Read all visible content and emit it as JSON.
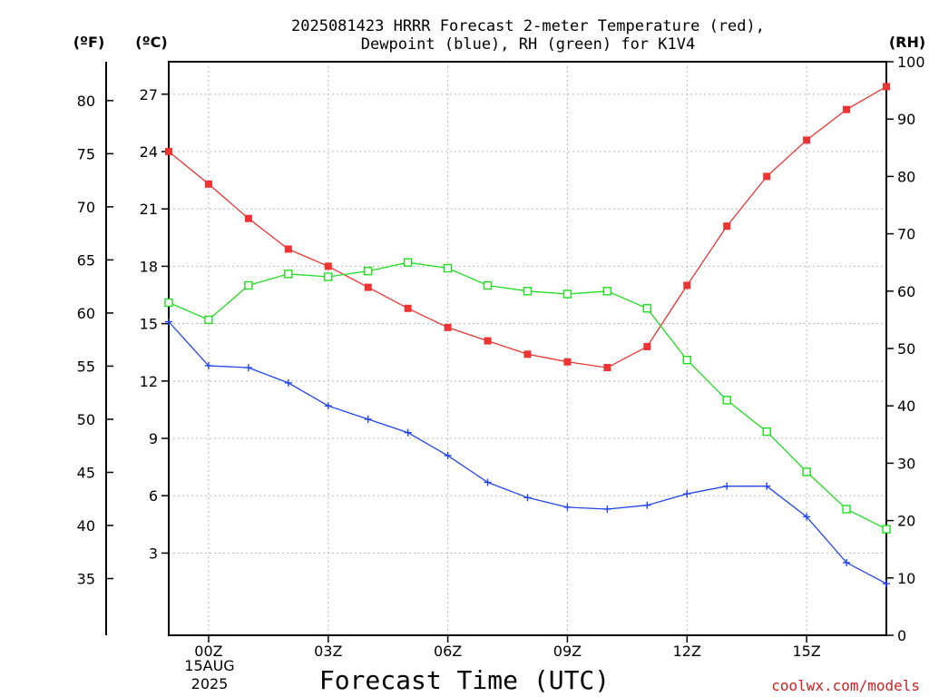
{
  "chart_data": {
    "type": "line",
    "title_lines": [
      "2025081423 HRRR Forecast 2-meter Temperature (red),",
      "Dewpoint (blue), RH (green) for K1V4"
    ],
    "xlabel": "Forecast Time (UTC)",
    "date_label_lines": [
      "15AUG",
      "2025"
    ],
    "credit": "coolwx.com/models",
    "unit_labels": {
      "fahrenheit": "(ºF)",
      "celsius": "(ºC)",
      "rh": "(RH)"
    },
    "x_hours": [
      -1,
      0,
      1,
      2,
      3,
      4,
      5,
      6,
      7,
      8,
      9,
      10,
      11,
      12,
      13,
      14,
      15,
      16,
      17
    ],
    "x_ticks": [
      {
        "hour": 0,
        "label": "00Z"
      },
      {
        "hour": 3,
        "label": "03Z"
      },
      {
        "hour": 6,
        "label": "06Z"
      },
      {
        "hour": 9,
        "label": "09Z"
      },
      {
        "hour": 12,
        "label": "12Z"
      },
      {
        "hour": 15,
        "label": "15Z"
      }
    ],
    "xlim": [
      -1,
      17
    ],
    "celsius_axis": {
      "ylim": [
        -1.3,
        28.7
      ],
      "ticks": [
        3,
        6,
        9,
        12,
        15,
        18,
        21,
        24,
        27
      ]
    },
    "fahrenheit_axis": {
      "ticks": [
        35,
        40,
        45,
        50,
        55,
        60,
        65,
        70,
        75,
        80
      ]
    },
    "rh_axis": {
      "ylim": [
        0,
        100
      ],
      "ticks": [
        0,
        10,
        20,
        30,
        40,
        50,
        60,
        70,
        80,
        90,
        100
      ]
    },
    "grid": true,
    "series": [
      {
        "name": "Temperature",
        "axis": "celsius",
        "color": "#ee3333",
        "marker": "filled-square",
        "values": [
          24.0,
          22.3,
          20.5,
          18.9,
          18.0,
          16.9,
          15.8,
          14.8,
          14.1,
          13.4,
          13.0,
          12.7,
          13.8,
          17.0,
          20.1,
          22.7,
          24.6,
          26.2,
          27.4
        ]
      },
      {
        "name": "Dewpoint",
        "axis": "celsius",
        "color": "#2244ee",
        "marker": "plus",
        "values": [
          15.1,
          12.8,
          12.7,
          11.9,
          10.7,
          10.0,
          9.3,
          8.1,
          6.7,
          5.9,
          5.4,
          5.3,
          5.5,
          6.1,
          6.5,
          6.5,
          4.9,
          2.5,
          1.4
        ]
      },
      {
        "name": "RH",
        "axis": "rh",
        "color": "#22dd22",
        "marker": "open-square",
        "values": [
          58,
          55,
          61,
          63,
          62.5,
          63.5,
          65,
          64,
          61,
          60,
          59.5,
          60,
          57,
          48,
          41,
          35.5,
          28.5,
          22,
          18.5
        ]
      }
    ]
  }
}
